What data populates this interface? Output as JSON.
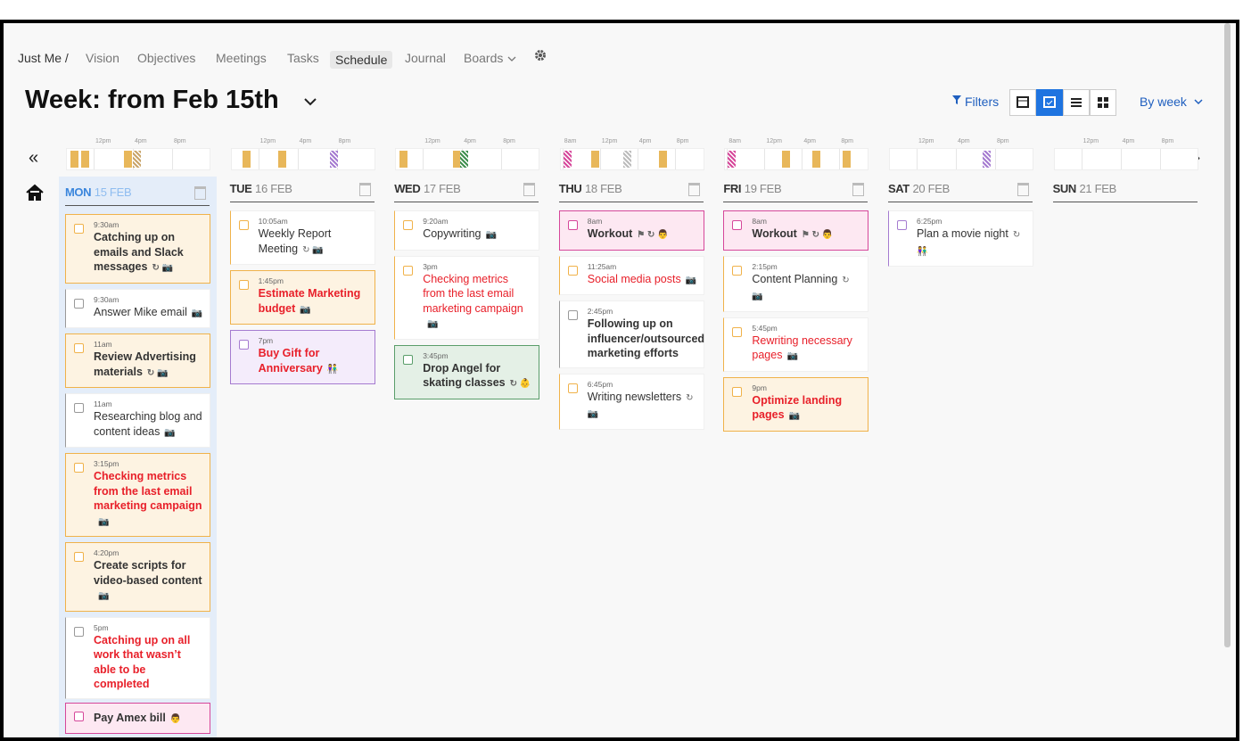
{
  "nav": {
    "items": [
      "Just Me /",
      "Vision",
      "Objectives",
      "Meetings",
      "Tasks",
      "Schedule",
      "Journal",
      "Boards"
    ]
  },
  "header": {
    "title": "Week: from Feb 15th",
    "filters": "Filters",
    "period": "By week",
    "prev": "«",
    "next": "»"
  },
  "days": [
    {
      "name": "MON",
      "date": "15 FEB",
      "highlight": true,
      "ticks": [
        "12pm",
        "4pm",
        "8pm"
      ],
      "tasks": [
        {
          "time": "9:30am",
          "title": "Catching up on emails and Slack messages",
          "icons": "↻ 📷",
          "bg": "#fdf3e2",
          "accent": "#f0b24a",
          "bold": true
        },
        {
          "time": "9:30am",
          "title": "Answer Mike email",
          "icons": "📷",
          "bg": "#ffffff",
          "accent": "#999999"
        },
        {
          "time": "11am",
          "title": "Review Advertising materials",
          "icons": "↻ 📷",
          "bg": "#fdf3e2",
          "accent": "#f0b24a",
          "bold": true
        },
        {
          "time": "11am",
          "title": "Researching blog and content ideas",
          "icons": "📷",
          "bg": "#ffffff",
          "accent": "#999999"
        },
        {
          "time": "3:15pm",
          "title": "Checking metrics from the last email marketing campaign",
          "icons": "📷",
          "bg": "#fdf3e2",
          "accent": "#f0b24a",
          "bold": true,
          "text_color": "#e8202a"
        },
        {
          "time": "4:20pm",
          "title": "Create scripts for video-based content",
          "icons": "📷",
          "bg": "#fdf3e2",
          "accent": "#f0b24a",
          "bold": true
        },
        {
          "time": "5pm",
          "title": "Catching up on all work that wasn’t able to be completed",
          "icons": "",
          "bg": "#ffffff",
          "accent": "#999999",
          "bold": true,
          "text_color": "#e8202a"
        }
      ],
      "unscheduled": [
        {
          "title": "Pay Amex bill",
          "icons": "👨",
          "bg": "#fde8f2",
          "accent": "#d6479a",
          "bold": true
        }
      ]
    },
    {
      "name": "TUE",
      "date": "16 FEB",
      "ticks": [
        "12pm",
        "4pm",
        "8pm"
      ],
      "tasks": [
        {
          "time": "10:05am",
          "title": "Weekly Report Meeting",
          "icons": "↻ 📷",
          "bg": "#ffffff",
          "accent": "#f0b24a"
        },
        {
          "time": "1:45pm",
          "title": "Estimate Marketing budget",
          "icons": "📷",
          "bg": "#fdf3e2",
          "accent": "#f0b24a",
          "bold": true,
          "text_color": "#e8202a"
        },
        {
          "time": "7pm",
          "title": "Buy Gift for Anniversary",
          "icons": "👫",
          "bg": "#f4ecfb",
          "accent": "#a57bd0",
          "bold": true,
          "text_color": "#e8202a"
        }
      ]
    },
    {
      "name": "WED",
      "date": "17 FEB",
      "ticks": [
        "12pm",
        "4pm",
        "8pm"
      ],
      "tasks": [
        {
          "time": "9:20am",
          "title": "Copywriting",
          "icons": "📷",
          "bg": "#ffffff",
          "accent": "#f0b24a"
        },
        {
          "time": "3pm",
          "title": "Checking metrics from the last email marketing campaign",
          "icons": "📷",
          "bg": "#ffffff",
          "accent": "#f0b24a",
          "text_color": "#e8202a"
        },
        {
          "time": "3:45pm",
          "title": "Drop Angel for skating classes",
          "icons": "↻ 👶",
          "bg": "#e4f0e6",
          "accent": "#5a9e6a",
          "bold": true
        }
      ]
    },
    {
      "name": "THU",
      "date": "18 FEB",
      "ticks": [
        "8am",
        "12pm",
        "4pm",
        "8pm"
      ],
      "tasks": [
        {
          "time": "8am",
          "title": "Workout",
          "icons": "⚑ ↻ 👨",
          "bg": "#fde8f2",
          "accent": "#d6479a",
          "bold": true
        },
        {
          "time": "11:25am",
          "title": "Social media posts",
          "icons": "📷",
          "bg": "#ffffff",
          "accent": "#f0b24a",
          "text_color": "#e8202a"
        },
        {
          "time": "2:45pm",
          "title": "Following up on influencer/outsourced marketing efforts",
          "icons": "",
          "bg": "#ffffff",
          "accent": "#999999",
          "bold": true
        },
        {
          "time": "6:45pm",
          "title": "Writing newsletters",
          "icons": "↻ 📷",
          "bg": "#ffffff",
          "accent": "#f0b24a"
        }
      ]
    },
    {
      "name": "FRI",
      "date": "19 FEB",
      "ticks": [
        "8am",
        "12pm",
        "4pm",
        "8pm"
      ],
      "tasks": [
        {
          "time": "8am",
          "title": "Workout",
          "icons": "⚑ ↻ 👨",
          "bg": "#fde8f2",
          "accent": "#d6479a",
          "bold": true
        },
        {
          "time": "2:15pm",
          "title": "Content Planning",
          "icons": "↻ 📷",
          "bg": "#ffffff",
          "accent": "#f0b24a"
        },
        {
          "time": "5:45pm",
          "title": "Rewriting necessary pages",
          "icons": "📷",
          "bg": "#ffffff",
          "accent": "#f0b24a",
          "text_color": "#e8202a"
        },
        {
          "time": "9pm",
          "title": "Optimize landing pages",
          "icons": "📷",
          "bg": "#fdf3e2",
          "accent": "#f0b24a",
          "bold": true,
          "text_color": "#e8202a"
        }
      ]
    },
    {
      "name": "SAT",
      "date": "20 FEB",
      "ticks": [
        "12pm",
        "4pm",
        "8pm"
      ],
      "tasks": [
        {
          "time": "6:25pm",
          "title": "Plan a movie night",
          "icons": "↻ 👫",
          "bg": "#ffffff",
          "accent": "#a57bd0"
        }
      ]
    },
    {
      "name": "SUN",
      "date": "21 FEB",
      "ticks": [
        "12pm",
        "4pm",
        "8pm"
      ],
      "tasks": []
    }
  ]
}
